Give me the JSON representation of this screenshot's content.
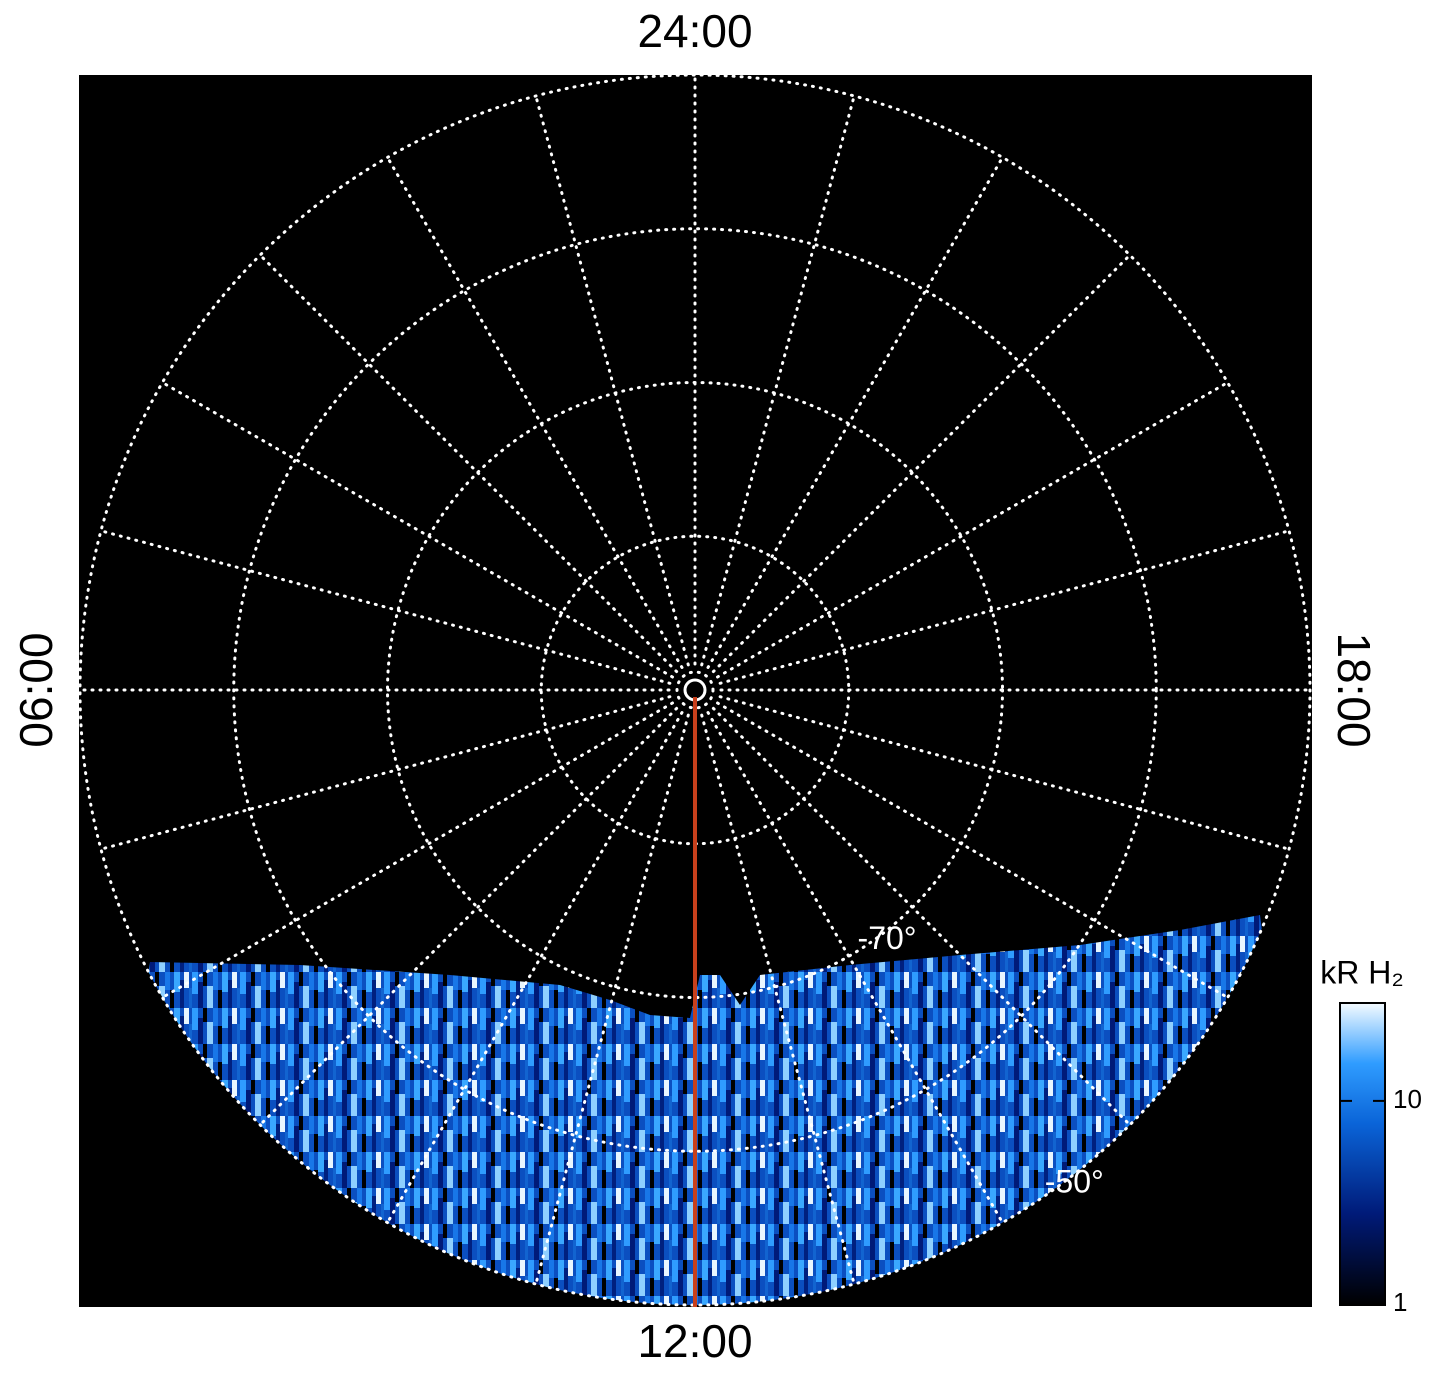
{
  "chart_data": {
    "type": "polar-map",
    "rlim": [
      -90,
      -50
    ],
    "lat_grid": [
      -80,
      -70,
      -60,
      -50
    ],
    "lat_labels": [
      {
        "value": -70,
        "label": "-70°"
      },
      {
        "value": -50,
        "label": "-50°"
      }
    ],
    "lt_labels": [
      {
        "value": 24,
        "label": "24:00"
      },
      {
        "value": 6,
        "label": "06:00"
      },
      {
        "value": 12,
        "label": "12:00"
      },
      {
        "value": 18,
        "label": "18:00"
      }
    ],
    "meridian_step": 1,
    "colorbar": {
      "title": "kR H₂",
      "log": true,
      "ylim": [
        1,
        30
      ],
      "yticks": [
        1,
        10
      ]
    }
  }
}
